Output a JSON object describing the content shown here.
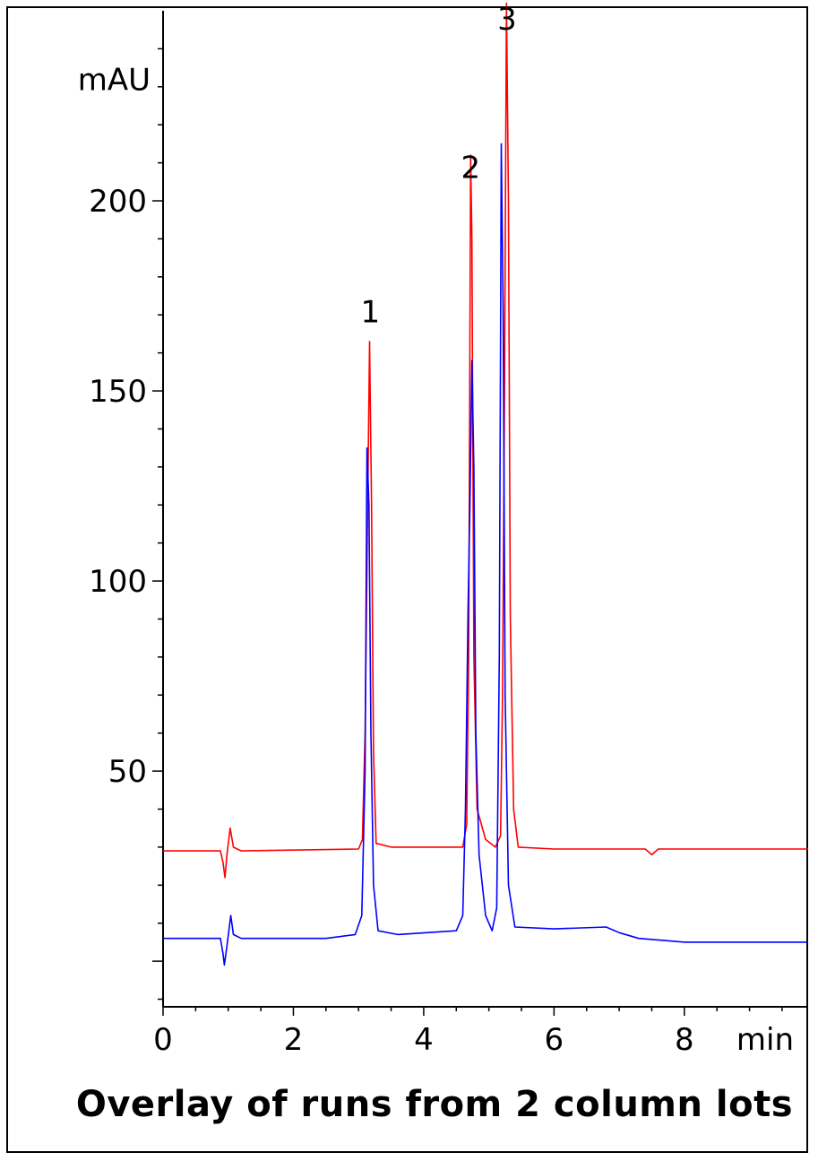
{
  "chart_data": {
    "type": "line",
    "title": "Overlay of runs from 2 column lots",
    "xlabel": "min",
    "ylabel": "mAU",
    "xlim": [
      0,
      9.9
    ],
    "ylim": [
      -12,
      250
    ],
    "x_ticks": [
      0,
      2,
      4,
      6,
      8
    ],
    "y_ticks": [
      50,
      100,
      150,
      200
    ],
    "grid": false,
    "peak_labels": [
      {
        "text": "1",
        "x": 3.18,
        "y": 168
      },
      {
        "text": "2",
        "x": 4.72,
        "y": 206
      },
      {
        "text": "3",
        "x": 5.28,
        "y": 245
      }
    ],
    "series": [
      {
        "color": "#ff0000",
        "points": [
          [
            0,
            29
          ],
          [
            0.88,
            29
          ],
          [
            0.92,
            26
          ],
          [
            0.95,
            22
          ],
          [
            0.98,
            28
          ],
          [
            1.03,
            35
          ],
          [
            1.08,
            30
          ],
          [
            1.2,
            29
          ],
          [
            3.0,
            29.5
          ],
          [
            3.06,
            32
          ],
          [
            3.1,
            60
          ],
          [
            3.14,
            120
          ],
          [
            3.17,
            163
          ],
          [
            3.2,
            120
          ],
          [
            3.23,
            55
          ],
          [
            3.27,
            31
          ],
          [
            3.5,
            30
          ],
          [
            4.6,
            30
          ],
          [
            4.66,
            36
          ],
          [
            4.69,
            80
          ],
          [
            4.72,
            212
          ],
          [
            4.74,
            190
          ],
          [
            4.77,
            80
          ],
          [
            4.82,
            40
          ],
          [
            4.95,
            32
          ],
          [
            5.1,
            30
          ],
          [
            5.18,
            33
          ],
          [
            5.21,
            70
          ],
          [
            5.24,
            150
          ],
          [
            5.27,
            252
          ],
          [
            5.3,
            200
          ],
          [
            5.33,
            90
          ],
          [
            5.38,
            40
          ],
          [
            5.45,
            30
          ],
          [
            6.0,
            29.5
          ],
          [
            7.4,
            29.5
          ],
          [
            7.5,
            28
          ],
          [
            7.6,
            29.5
          ],
          [
            9.9,
            29.5
          ]
        ]
      },
      {
        "color": "#0000ff",
        "points": [
          [
            0,
            6
          ],
          [
            0.88,
            6
          ],
          [
            0.92,
            2
          ],
          [
            0.94,
            -1
          ],
          [
            0.98,
            4
          ],
          [
            1.04,
            12
          ],
          [
            1.08,
            7
          ],
          [
            1.2,
            6
          ],
          [
            2.0,
            6
          ],
          [
            2.5,
            6
          ],
          [
            2.95,
            7
          ],
          [
            3.05,
            12
          ],
          [
            3.1,
            50
          ],
          [
            3.13,
            135
          ],
          [
            3.16,
            120
          ],
          [
            3.19,
            60
          ],
          [
            3.23,
            20
          ],
          [
            3.3,
            8
          ],
          [
            3.6,
            7
          ],
          [
            4.5,
            8
          ],
          [
            4.6,
            12
          ],
          [
            4.64,
            40
          ],
          [
            4.68,
            92
          ],
          [
            4.71,
            120
          ],
          [
            4.74,
            158
          ],
          [
            4.77,
            130
          ],
          [
            4.8,
            60
          ],
          [
            4.85,
            28
          ],
          [
            4.95,
            12
          ],
          [
            5.05,
            8
          ],
          [
            5.12,
            14
          ],
          [
            5.16,
            80
          ],
          [
            5.19,
            215
          ],
          [
            5.22,
            170
          ],
          [
            5.25,
            70
          ],
          [
            5.3,
            20
          ],
          [
            5.4,
            9
          ],
          [
            6.0,
            8.5
          ],
          [
            6.8,
            9
          ],
          [
            7.0,
            7.5
          ],
          [
            7.3,
            6
          ],
          [
            8.0,
            5
          ],
          [
            9.0,
            5
          ],
          [
            9.9,
            5
          ]
        ]
      }
    ]
  }
}
